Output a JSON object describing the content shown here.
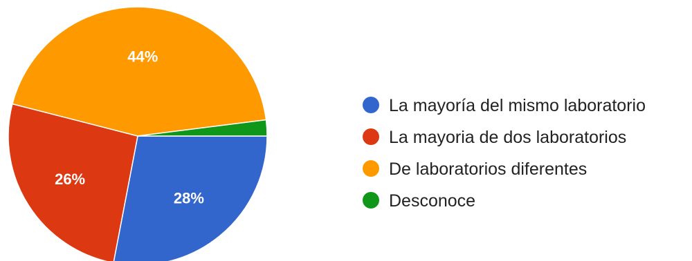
{
  "chart_data": {
    "type": "pie",
    "categories": [
      "La mayoría del mismo laboratorio",
      "La mayoria de dos laboratorios",
      "De laboratorios diferentes",
      "Desconoce"
    ],
    "values": [
      28,
      26,
      44,
      2
    ],
    "labels": [
      "28%",
      "26%",
      "44%",
      ""
    ],
    "colors": [
      "#3366cc",
      "#dc3912",
      "#ff9900",
      "#109618"
    ],
    "start_angle_deg": 90,
    "direction": "clockwise",
    "legend_position": "right"
  }
}
